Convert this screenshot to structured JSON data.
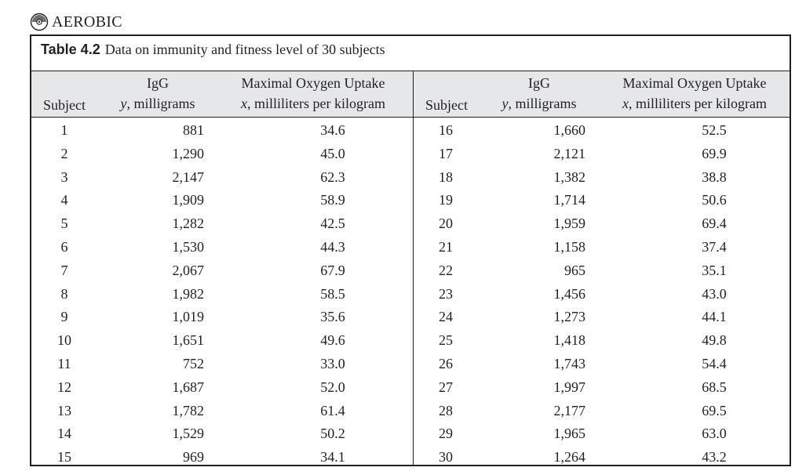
{
  "dataset": {
    "label": "AEROBIC",
    "icon": "cd-disc-icon"
  },
  "table": {
    "caption_label": "Table 4.2",
    "caption_text": "Data on immunity and fitness level of 30 subjects",
    "headers": {
      "subject": "Subject",
      "igg_line1": "IgG",
      "igg_var": "y",
      "igg_unit": ", milligrams",
      "vo2_line1": "Maximal Oxygen Uptake",
      "vo2_var": "x",
      "vo2_unit": ", milliliters per kilogram"
    },
    "left_rows": [
      {
        "subject": "1",
        "igg": "881",
        "vo2": "34.6"
      },
      {
        "subject": "2",
        "igg": "1,290",
        "vo2": "45.0"
      },
      {
        "subject": "3",
        "igg": "2,147",
        "vo2": "62.3"
      },
      {
        "subject": "4",
        "igg": "1,909",
        "vo2": "58.9"
      },
      {
        "subject": "5",
        "igg": "1,282",
        "vo2": "42.5"
      },
      {
        "subject": "6",
        "igg": "1,530",
        "vo2": "44.3"
      },
      {
        "subject": "7",
        "igg": "2,067",
        "vo2": "67.9"
      },
      {
        "subject": "8",
        "igg": "1,982",
        "vo2": "58.5"
      },
      {
        "subject": "9",
        "igg": "1,019",
        "vo2": "35.6"
      },
      {
        "subject": "10",
        "igg": "1,651",
        "vo2": "49.6"
      },
      {
        "subject": "11",
        "igg": "752",
        "vo2": "33.0"
      },
      {
        "subject": "12",
        "igg": "1,687",
        "vo2": "52.0"
      },
      {
        "subject": "13",
        "igg": "1,782",
        "vo2": "61.4"
      },
      {
        "subject": "14",
        "igg": "1,529",
        "vo2": "50.2"
      },
      {
        "subject": "15",
        "igg": "969",
        "vo2": "34.1"
      }
    ],
    "right_rows": [
      {
        "subject": "16",
        "igg": "1,660",
        "vo2": "52.5"
      },
      {
        "subject": "17",
        "igg": "2,121",
        "vo2": "69.9"
      },
      {
        "subject": "18",
        "igg": "1,382",
        "vo2": "38.8"
      },
      {
        "subject": "19",
        "igg": "1,714",
        "vo2": "50.6"
      },
      {
        "subject": "20",
        "igg": "1,959",
        "vo2": "69.4"
      },
      {
        "subject": "21",
        "igg": "1,158",
        "vo2": "37.4"
      },
      {
        "subject": "22",
        "igg": "965",
        "vo2": "35.1"
      },
      {
        "subject": "23",
        "igg": "1,456",
        "vo2": "43.0"
      },
      {
        "subject": "24",
        "igg": "1,273",
        "vo2": "44.1"
      },
      {
        "subject": "25",
        "igg": "1,418",
        "vo2": "49.8"
      },
      {
        "subject": "26",
        "igg": "1,743",
        "vo2": "54.4"
      },
      {
        "subject": "27",
        "igg": "1,997",
        "vo2": "68.5"
      },
      {
        "subject": "28",
        "igg": "2,177",
        "vo2": "69.5"
      },
      {
        "subject": "29",
        "igg": "1,965",
        "vo2": "63.0"
      },
      {
        "subject": "30",
        "igg": "1,264",
        "vo2": "43.2"
      }
    ]
  }
}
